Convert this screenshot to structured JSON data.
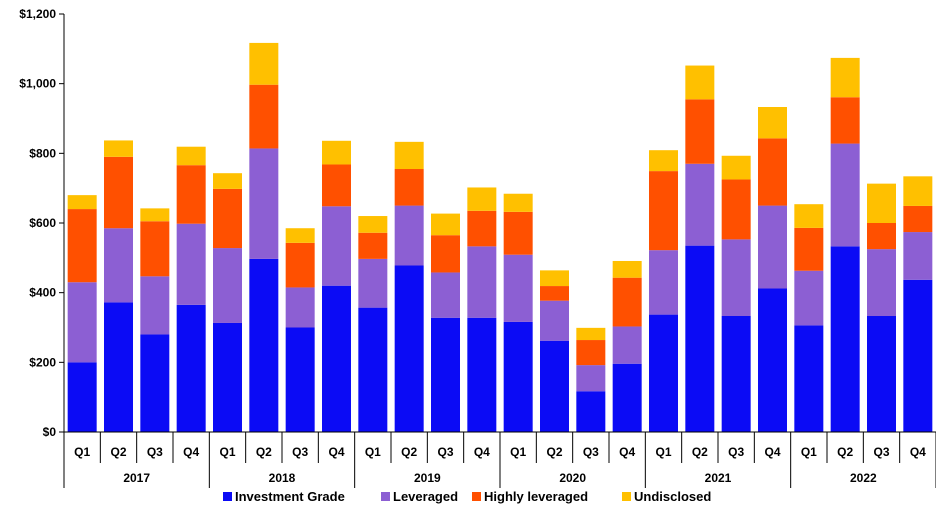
{
  "chart_data": {
    "type": "bar",
    "stacked": true,
    "title": "",
    "xlabel": "",
    "ylabel": "",
    "ylim": [
      0,
      1200
    ],
    "y_ticks": [
      "$0",
      "$200",
      "$400",
      "$600",
      "$800",
      "$1,000",
      "$1,200"
    ],
    "y_tick_values": [
      0,
      200,
      400,
      600,
      800,
      1000,
      1200
    ],
    "grid": false,
    "legend_position": "bottom",
    "categories": [
      "Q1",
      "Q2",
      "Q3",
      "Q4",
      "Q1",
      "Q2",
      "Q3",
      "Q4",
      "Q1",
      "Q2",
      "Q3",
      "Q4",
      "Q1",
      "Q2",
      "Q3",
      "Q4",
      "Q1",
      "Q2",
      "Q3",
      "Q4",
      "Q1",
      "Q2",
      "Q3",
      "Q4"
    ],
    "years": [
      "2017",
      "2018",
      "2019",
      "2020",
      "2021",
      "2022"
    ],
    "series": [
      {
        "name": "Investment Grade",
        "color": "#0B0BF5",
        "values": [
          200,
          372,
          280,
          365,
          313,
          497,
          300,
          420,
          357,
          478,
          328,
          328,
          316,
          262,
          117,
          196,
          337,
          535,
          333,
          412,
          306,
          533,
          333,
          437
        ]
      },
      {
        "name": "Leveraged",
        "color": "#8C5FD3",
        "values": [
          230,
          213,
          167,
          233,
          215,
          317,
          115,
          228,
          140,
          172,
          130,
          205,
          193,
          115,
          75,
          107,
          185,
          235,
          220,
          238,
          157,
          295,
          192,
          137
        ]
      },
      {
        "name": "Highly leveraged",
        "color": "#FF5000",
        "values": [
          210,
          205,
          158,
          168,
          170,
          183,
          128,
          120,
          75,
          105,
          107,
          102,
          123,
          42,
          72,
          140,
          227,
          185,
          172,
          193,
          123,
          133,
          75,
          75
        ]
      },
      {
        "name": "Undisclosed",
        "color": "#FFC000",
        "values": [
          40,
          47,
          37,
          53,
          45,
          120,
          42,
          68,
          48,
          78,
          62,
          67,
          52,
          45,
          35,
          48,
          60,
          97,
          68,
          90,
          68,
          113,
          113,
          85
        ]
      }
    ]
  }
}
